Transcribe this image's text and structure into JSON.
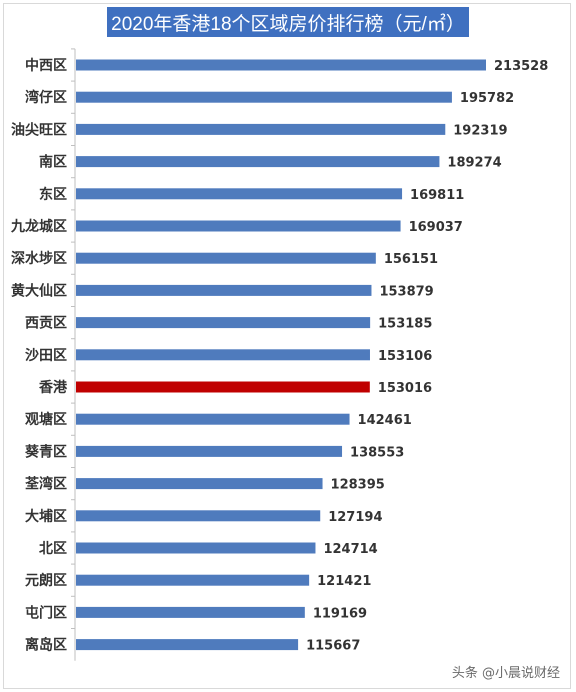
{
  "chart_data": {
    "type": "bar",
    "orientation": "horizontal",
    "title": "2020年香港18个区域房价排行榜（元/㎡）",
    "categories": [
      "中西区",
      "湾仔区",
      "油尖旺区",
      "南区",
      "东区",
      "九龙城区",
      "深水埗区",
      "黄大仙区",
      "西贡区",
      "沙田区",
      "香港",
      "观塘区",
      "葵青区",
      "荃湾区",
      "大埔区",
      "北区",
      "元朗区",
      "屯门区",
      "离岛区"
    ],
    "values": [
      213528,
      195782,
      192319,
      189274,
      169811,
      169037,
      156151,
      153879,
      153185,
      153106,
      153016,
      142461,
      138553,
      128395,
      127194,
      124714,
      121421,
      119169,
      115667
    ],
    "highlight_category": "香港",
    "colors": {
      "bar": "#4f7bbd",
      "highlight": "#c00000",
      "title_bg": "#3f70c0",
      "axis": "#bfbfbf"
    },
    "xlim": [
      0,
      230000
    ],
    "grid": false,
    "legend": "none",
    "data_labels": true
  },
  "watermark": "头条 @小晨说财经"
}
